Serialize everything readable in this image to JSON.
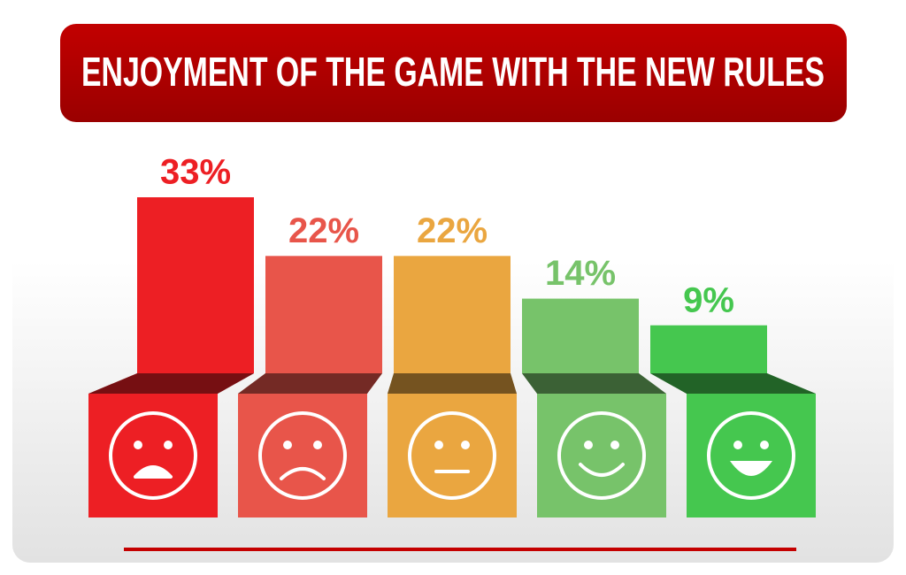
{
  "chart_data": {
    "type": "bar",
    "title": "ENJOYMENT OF THE GAME WITH THE NEW RULES",
    "categories": [
      null,
      null,
      null,
      null,
      null
    ],
    "values": [
      33,
      22,
      22,
      14,
      9
    ],
    "value_labels": [
      "33%",
      "22%",
      "22%",
      "14%",
      "9%"
    ],
    "colors": [
      "#ed1f24",
      "#e8554a",
      "#eaa640",
      "#77c36a",
      "#45c74f"
    ]
  }
}
